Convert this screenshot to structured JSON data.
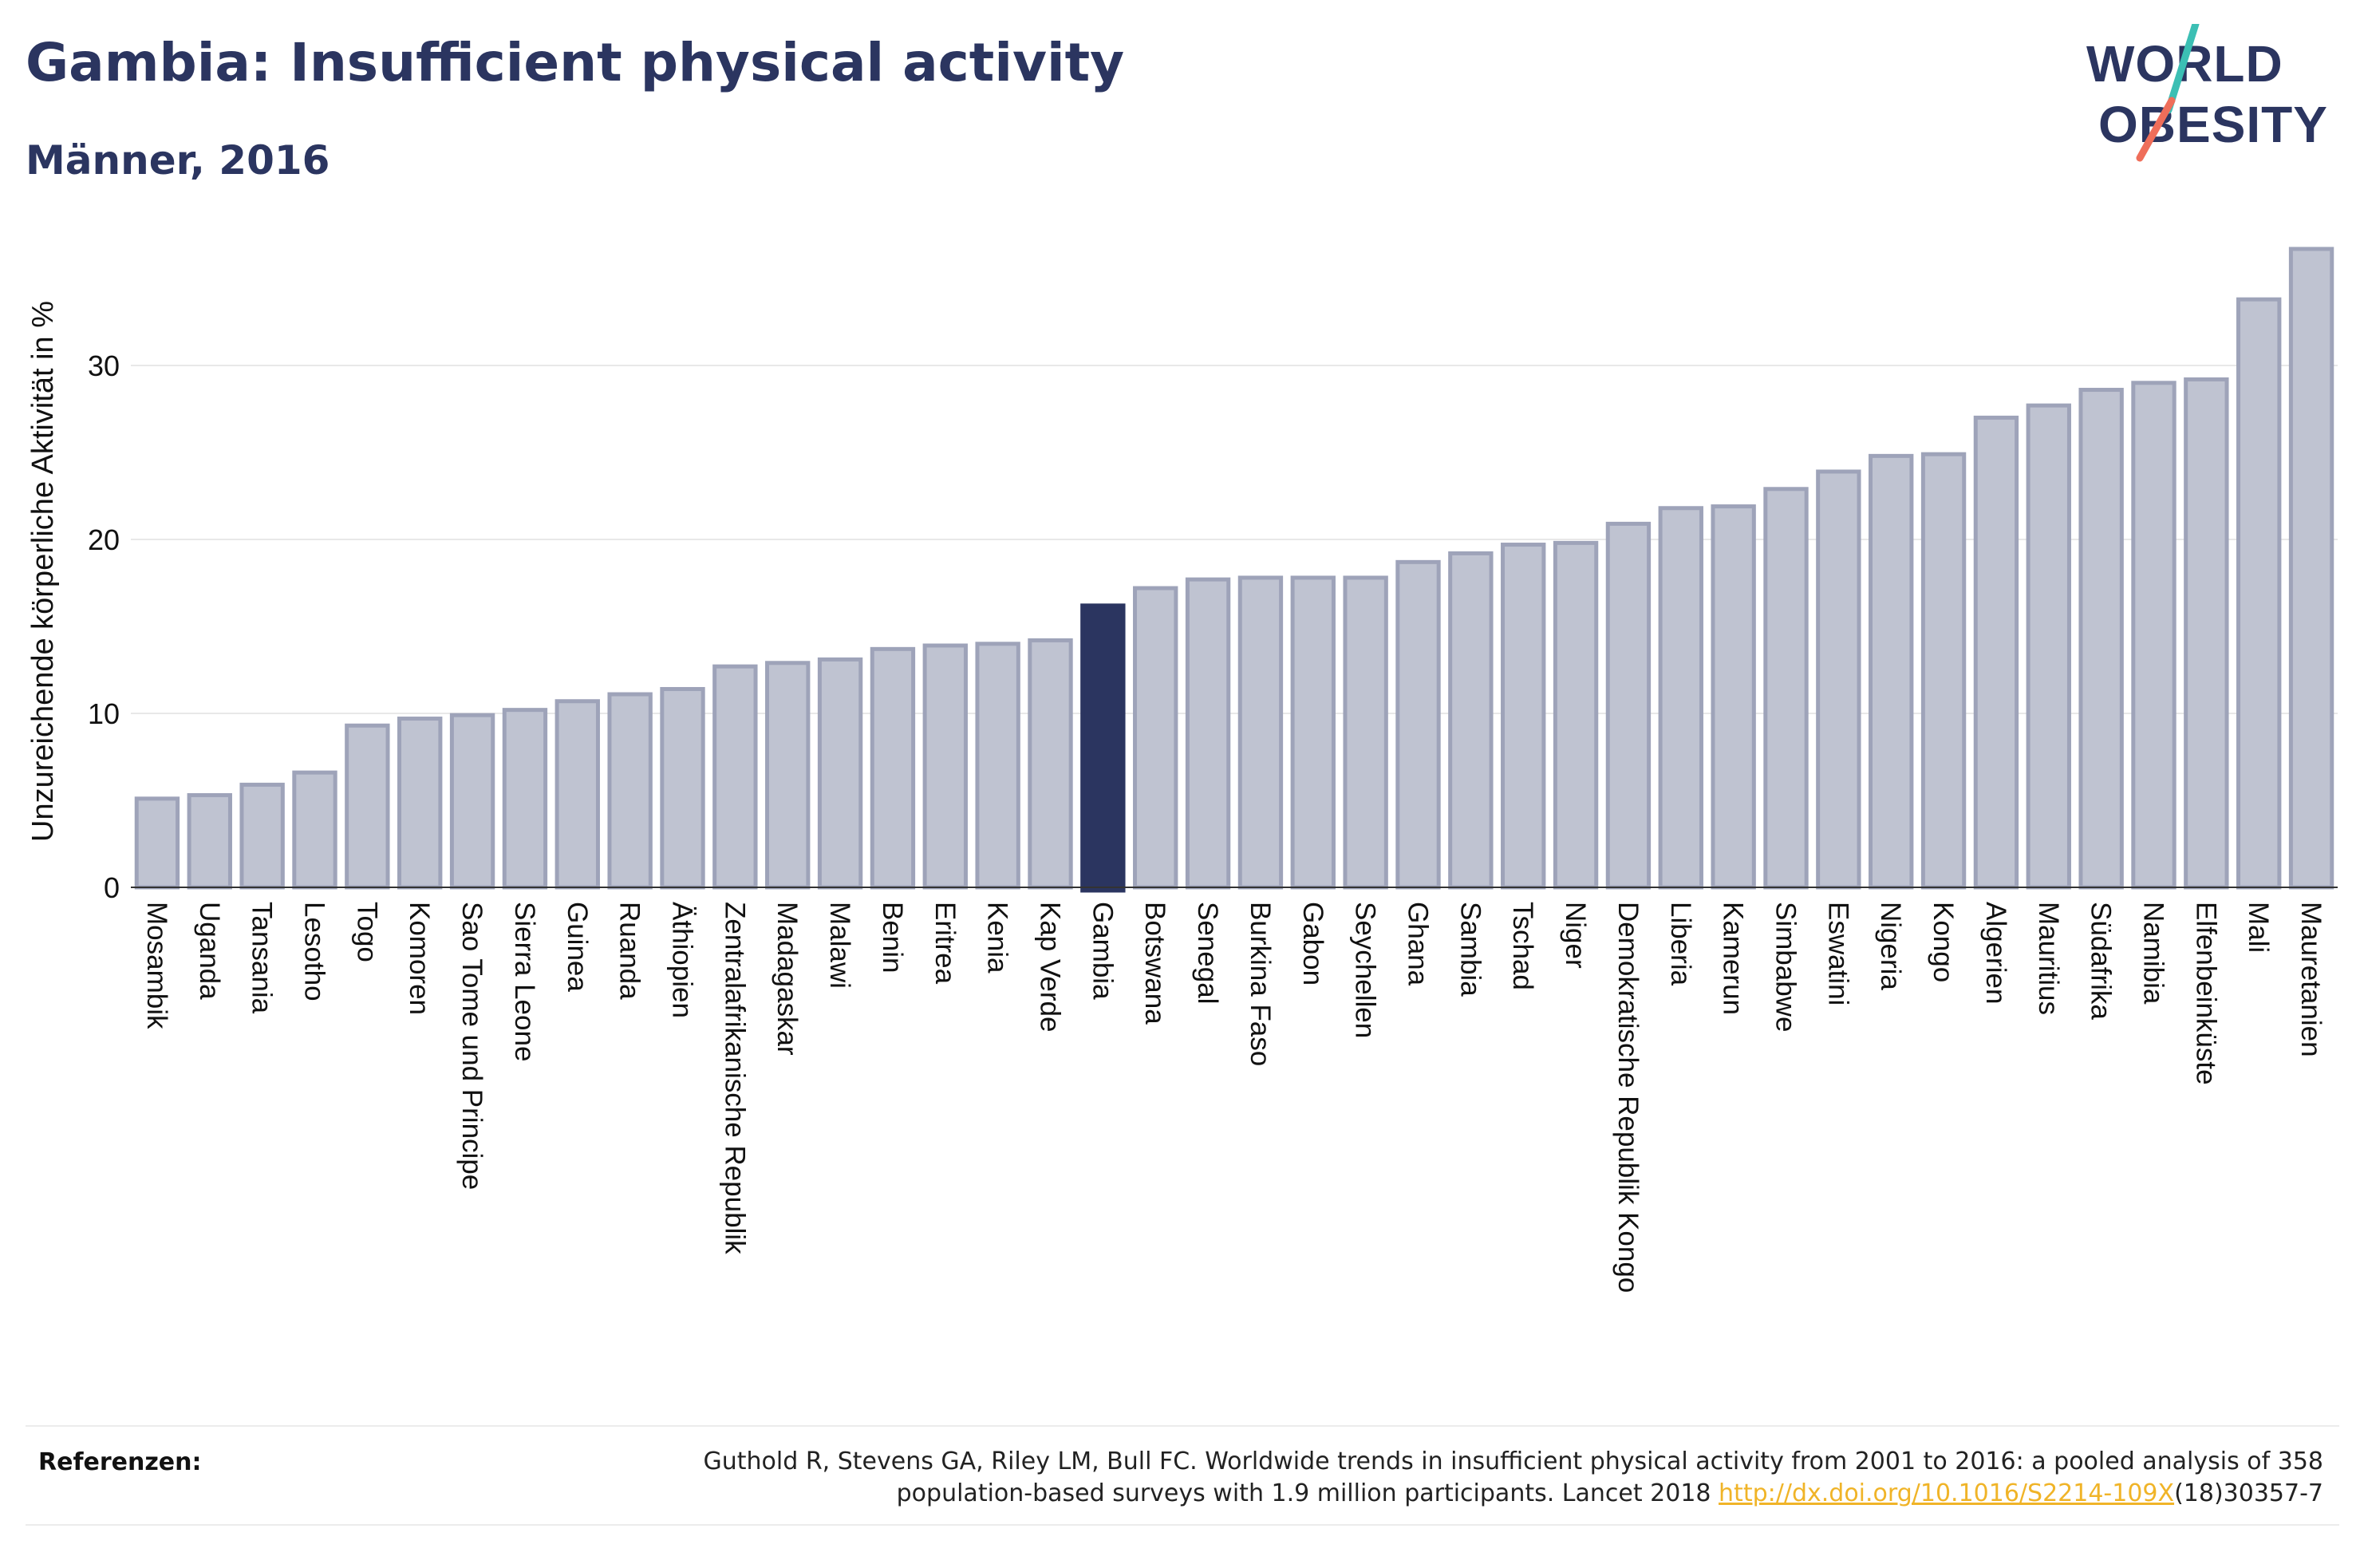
{
  "header": {
    "title": "Gambia: Insufficient physical activity",
    "subtitle": "Männer, 2016"
  },
  "logo": {
    "line1": "WORLD",
    "line2": "OBESITY",
    "colors": {
      "text": "#2b3560",
      "slash_top": "#3cbfb4",
      "slash_bottom": "#ef6e5a"
    }
  },
  "colors": {
    "bar_default_fill": "#bfc3d1",
    "bar_default_stroke": "#9ea3b9",
    "bar_highlight": "#2b3560",
    "grid": "#e8e8e8",
    "axis_text": "#111111"
  },
  "chart_data": {
    "type": "bar",
    "ylabel": "Unzureichende körperliche Aktivität in %",
    "ylim": [
      0,
      38
    ],
    "yticks": [
      0,
      10,
      20,
      30
    ],
    "grid": true,
    "highlight": "Gambia",
    "categories": [
      "Mosambik",
      "Uganda",
      "Tansania",
      "Lesotho",
      "Togo",
      "Komoren",
      "Sao Tome und Principe",
      "Sierra Leone",
      "Guinea",
      "Ruanda",
      "Äthiopien",
      "Zentralafrikanische Republik",
      "Madagaskar",
      "Malawi",
      "Benin",
      "Eritrea",
      "Kenia",
      "Kap Verde",
      "Gambia",
      "Botswana",
      "Senegal",
      "Burkina Faso",
      "Gabon",
      "Seychellen",
      "Ghana",
      "Sambia",
      "Tschad",
      "Niger",
      "Demokratische Republik Kongo",
      "Liberia",
      "Kamerun",
      "Simbabwe",
      "Eswatini",
      "Nigeria",
      "Kongo",
      "Algerien",
      "Mauritius",
      "Südafrika",
      "Namibia",
      "Elfenbeinküste",
      "Mali",
      "Mauretanien"
    ],
    "values": [
      5.1,
      5.3,
      5.9,
      6.6,
      9.3,
      9.7,
      9.9,
      10.2,
      10.7,
      11.1,
      11.4,
      12.7,
      12.9,
      13.1,
      13.7,
      13.9,
      14.0,
      14.2,
      16.2,
      17.2,
      17.7,
      17.8,
      17.8,
      17.8,
      18.7,
      19.2,
      19.7,
      19.8,
      20.9,
      21.8,
      21.9,
      22.9,
      23.9,
      24.8,
      24.9,
      27.0,
      27.7,
      28.6,
      29.0,
      29.2,
      33.8,
      36.7
    ]
  },
  "references": {
    "label": "Referenzen:",
    "text_line1": "Guthold R, Stevens GA, Riley LM, Bull FC. Worldwide trends in insufficient physical activity from 2001 to 2016: a pooled analysis of 358",
    "text_line2_before": "population-based surveys with 1.9 million participants. Lancet 2018 ",
    "link": "http://dx.doi.org/10.1016/S2214-109X",
    "text_line2_after": "(18)30357-7"
  }
}
